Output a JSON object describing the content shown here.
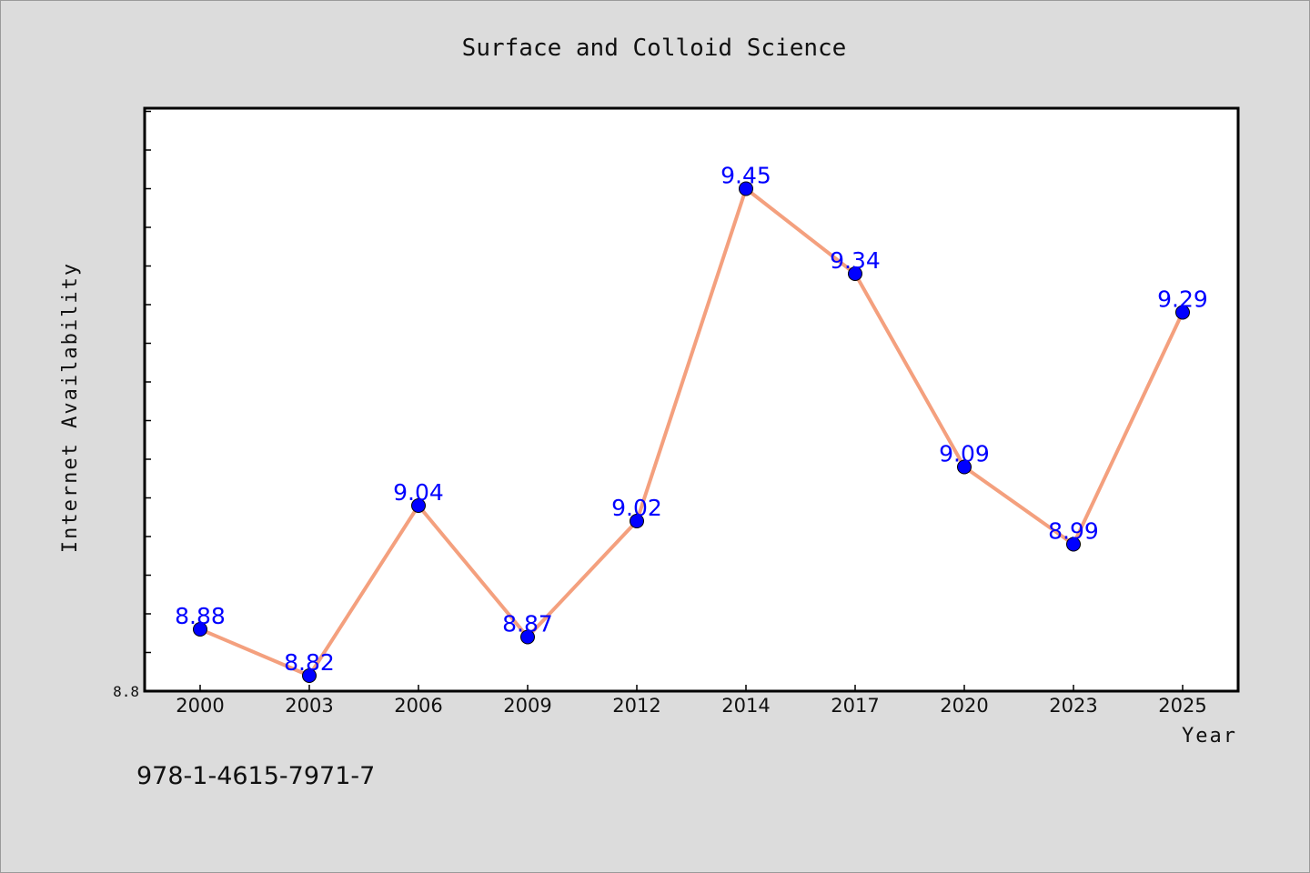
{
  "chart_data": {
    "type": "line",
    "title": "Surface and Colloid Science",
    "xlabel": "Year",
    "ylabel": "Internet Availability",
    "categories": [
      "2000",
      "2003",
      "2006",
      "2009",
      "2012",
      "2014",
      "2017",
      "2020",
      "2023",
      "2025"
    ],
    "series": [
      {
        "values": [
          8.88,
          8.82,
          9.04,
          8.87,
          9.02,
          9.45,
          9.34,
          9.09,
          8.99,
          9.29
        ]
      }
    ],
    "data_labels": [
      "8.88",
      "8.82",
      "9.04",
      "8.87",
      "9.02",
      "9.45",
      "9.34",
      "9.09",
      "8.99",
      "9.29"
    ],
    "y_tick_labels": [
      "8.8"
    ],
    "ylim": [
      8.8,
      9.55
    ],
    "grid": false,
    "line_color": "#f4a07e",
    "marker_color": "#0000ff",
    "label_color": "#0000ff"
  },
  "footer": {
    "isbn": "978-1-4615-7971-7"
  }
}
